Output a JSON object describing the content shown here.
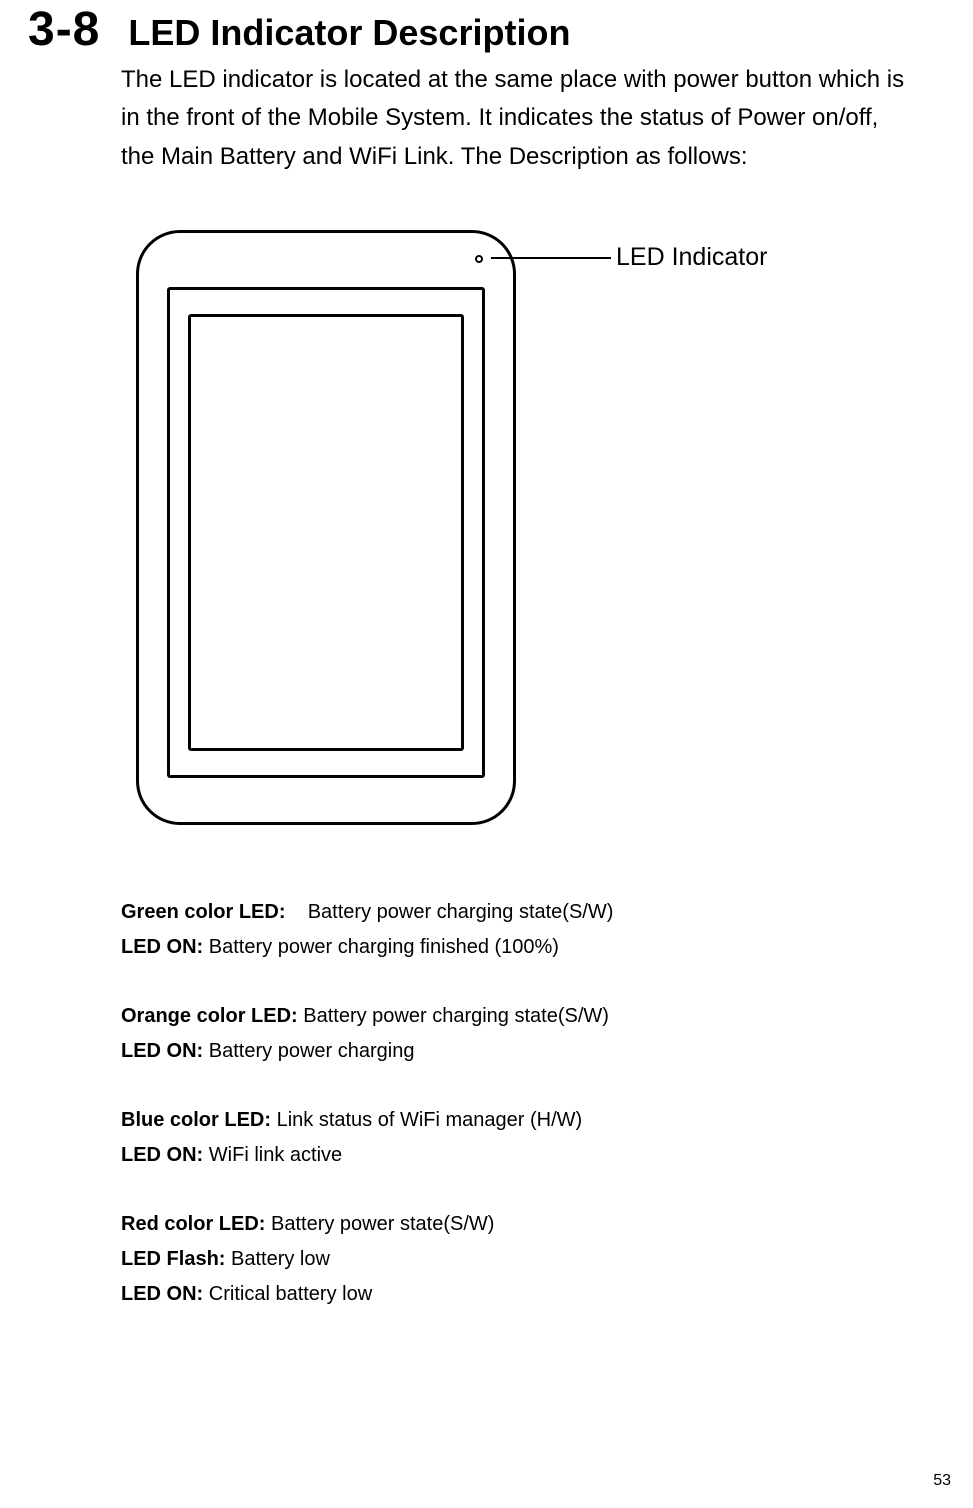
{
  "section": {
    "number": "3-8",
    "title": "LED Indicator Description"
  },
  "intro": "The LED indicator is located at the same place with power button which is in the front of the Mobile System.    It indicates the status of Power on/off, the Main Battery and WiFi Link. The Description as follows:",
  "diagram": {
    "callout_label": "LED Indicator"
  },
  "leds": {
    "green": {
      "label": "Green color LED:",
      "meaning": "Battery power charging state(S/W)",
      "on_label": "LED ON:",
      "on_text": "Battery power charging finished (100%)"
    },
    "orange": {
      "label": "Orange color LED:",
      "meaning": "Battery power charging state(S/W)",
      "on_label": "LED ON:",
      "on_text": "Battery power charging"
    },
    "blue": {
      "label": "Blue color LED:",
      "meaning": "Link status of WiFi manager (H/W)",
      "on_label": "LED ON:",
      "on_text": "WiFi link active"
    },
    "red": {
      "label": "Red color LED:",
      "meaning": "Battery power state(S/W)",
      "flash_label": "LED Flash:",
      "flash_text": "Battery low",
      "on_label": "LED ON:",
      "on_text": "Critical battery low"
    }
  },
  "page_number": "53"
}
